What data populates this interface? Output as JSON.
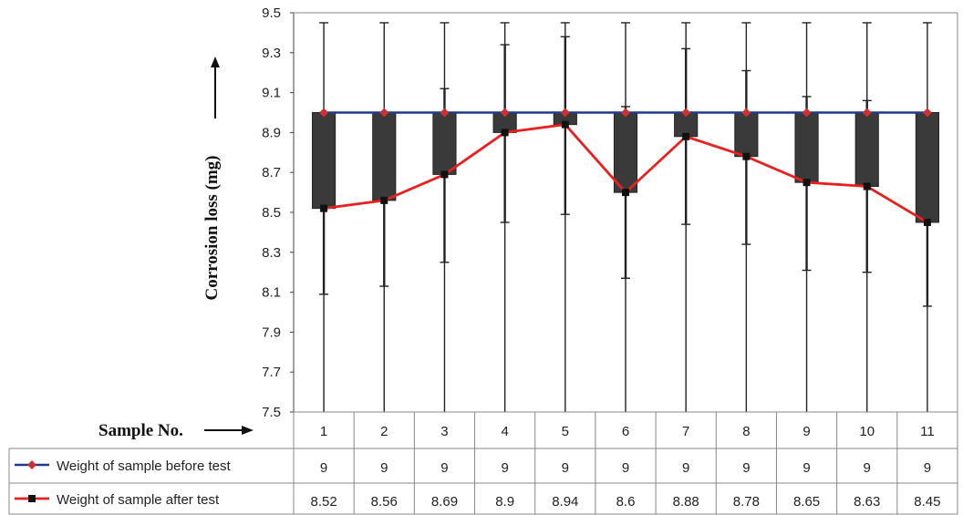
{
  "chart_data": {
    "type": "line",
    "ylabel": "Corrosion loss (mg)",
    "xlabel": "Sample No.",
    "ylim": [
      7.5,
      9.5
    ],
    "yticks": [
      "7.5",
      "7.7",
      "7.9",
      "8.1",
      "8.3",
      "8.5",
      "8.7",
      "8.9",
      "9.1",
      "9.3",
      "9.5"
    ],
    "categories": [
      "1",
      "2",
      "3",
      "4",
      "5",
      "6",
      "7",
      "8",
      "9",
      "10",
      "11"
    ],
    "series": [
      {
        "name": "Weight of sample before test",
        "values": [
          9,
          9,
          9,
          9,
          9,
          9,
          9,
          9,
          9,
          9,
          9
        ],
        "labels": [
          "9",
          "9",
          "9",
          "9",
          "9",
          "9",
          "9",
          "9",
          "9",
          "9",
          "9"
        ],
        "color": "#1f3b8c",
        "marker_color": "#d03030"
      },
      {
        "name": "Weight of sample after test",
        "values": [
          8.52,
          8.56,
          8.69,
          8.9,
          8.94,
          8.6,
          8.88,
          8.78,
          8.65,
          8.63,
          8.45
        ],
        "labels": [
          "8.52",
          "8.56",
          "8.69",
          "8.9",
          "8.94",
          "8.6",
          "8.88",
          "8.78",
          "8.65",
          "8.63",
          "8.45"
        ],
        "color": "#e82020",
        "marker_color": "#111111"
      }
    ],
    "error_bars": {
      "before_top": [
        9.45,
        9.45,
        9.45,
        9.45,
        9.45,
        9.45,
        9.45,
        9.45,
        9.45,
        9.45,
        9.45
      ],
      "before_low": [
        7.5,
        7.5,
        7.5,
        7.5,
        7.5,
        7.5,
        7.5,
        7.5,
        7.5,
        7.5,
        7.5
      ],
      "after_top": [
        9.0,
        9.0,
        9.12,
        9.34,
        9.38,
        9.03,
        9.32,
        9.21,
        9.08,
        9.06,
        9.0
      ],
      "after_low": [
        8.09,
        8.13,
        8.25,
        8.45,
        8.49,
        8.17,
        8.44,
        8.34,
        8.21,
        8.2,
        8.03
      ]
    },
    "box_color": "#3a3a3a",
    "grid": false,
    "legend": "table-below"
  }
}
